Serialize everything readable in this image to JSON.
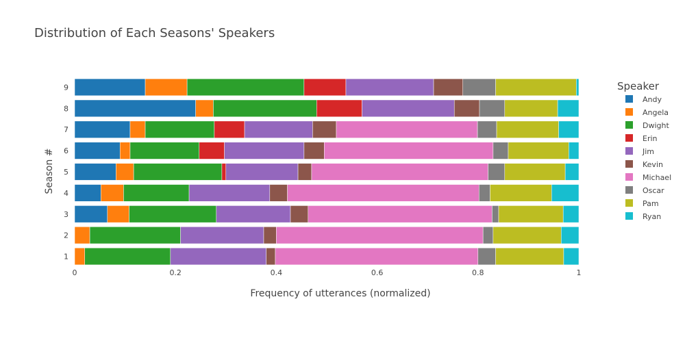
{
  "chart_data": {
    "type": "bar",
    "orientation": "horizontal",
    "stacked": true,
    "title": "Distribution of Each Seasons' Speakers",
    "xlabel": "Frequency of utterances (normalized)",
    "ylabel": "Season #",
    "xlim": [
      0,
      1
    ],
    "xticks": [
      "0",
      "0.2",
      "0.4",
      "0.6",
      "0.8",
      "1"
    ],
    "categories": [
      "1",
      "2",
      "3",
      "4",
      "5",
      "6",
      "7",
      "8",
      "9"
    ],
    "legend_title": "Speaker",
    "legend_position": "right",
    "grid": false,
    "series": [
      {
        "name": "Andy",
        "color": "#1f77b4",
        "values": [
          0.0,
          0.0,
          0.065,
          0.052,
          0.082,
          0.09,
          0.11,
          0.24,
          0.14
        ]
      },
      {
        "name": "Angela",
        "color": "#ff7f0e",
        "values": [
          0.02,
          0.03,
          0.043,
          0.045,
          0.035,
          0.02,
          0.03,
          0.035,
          0.083
        ]
      },
      {
        "name": "Dwight",
        "color": "#2ca02c",
        "values": [
          0.17,
          0.18,
          0.173,
          0.13,
          0.175,
          0.137,
          0.137,
          0.205,
          0.232
        ]
      },
      {
        "name": "Erin",
        "color": "#d62728",
        "values": [
          0.0,
          0.0,
          0.0,
          0.0,
          0.008,
          0.05,
          0.06,
          0.09,
          0.083
        ]
      },
      {
        "name": "Jim",
        "color": "#9467bd",
        "values": [
          0.19,
          0.165,
          0.147,
          0.16,
          0.143,
          0.158,
          0.135,
          0.183,
          0.174
        ]
      },
      {
        "name": "Kevin",
        "color": "#8c564b",
        "values": [
          0.018,
          0.025,
          0.035,
          0.035,
          0.027,
          0.04,
          0.047,
          0.05,
          0.058
        ]
      },
      {
        "name": "Michael",
        "color": "#e377c2",
        "values": [
          0.402,
          0.41,
          0.365,
          0.38,
          0.35,
          0.335,
          0.28,
          0.0,
          0.0
        ]
      },
      {
        "name": "Oscar",
        "color": "#7f7f7f",
        "values": [
          0.035,
          0.02,
          0.013,
          0.022,
          0.033,
          0.03,
          0.038,
          0.05,
          0.065
        ]
      },
      {
        "name": "Pam",
        "color": "#bcbd22",
        "values": [
          0.135,
          0.135,
          0.128,
          0.122,
          0.12,
          0.12,
          0.123,
          0.105,
          0.16
        ]
      },
      {
        "name": "Ryan",
        "color": "#17becf",
        "values": [
          0.03,
          0.035,
          0.031,
          0.054,
          0.027,
          0.02,
          0.04,
          0.042,
          0.005
        ]
      }
    ]
  }
}
